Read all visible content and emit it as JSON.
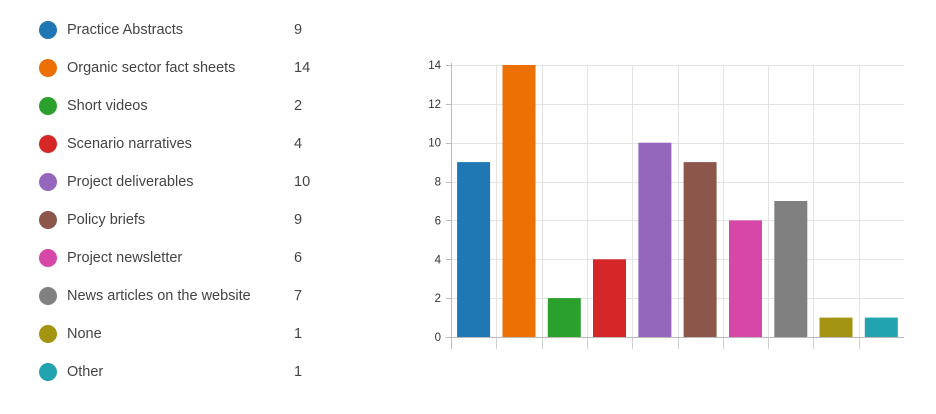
{
  "chart_data": {
    "type": "bar",
    "categories": [
      "Practice Abstracts",
      "Organic sector fact sheets",
      "Short videos",
      "Scenario narratives",
      "Project deliverables",
      "Policy briefs",
      "Project newsletter",
      "News articles on the website",
      "None",
      "Other"
    ],
    "values": [
      9,
      14,
      2,
      4,
      10,
      9,
      6,
      7,
      1,
      1
    ],
    "colors": [
      "#1f77b4",
      "#ed7004",
      "#2ca02c",
      "#d62728",
      "#9467bd",
      "#8c564b",
      "#d647a7",
      "#808080",
      "#a39412",
      "#22a4b0"
    ],
    "ylim": [
      0,
      14
    ],
    "yticks": [
      "0",
      "2",
      "4",
      "6",
      "8",
      "10",
      "12",
      "14"
    ],
    "grid": true,
    "legend": "left",
    "title": "",
    "xlabel": "",
    "ylabel": ""
  }
}
